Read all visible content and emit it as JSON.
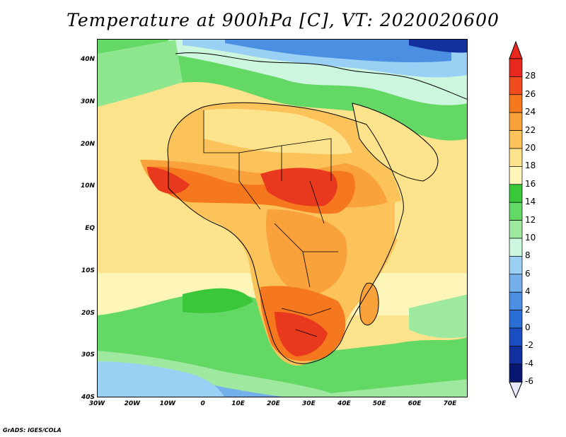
{
  "title": "Temperature at 900hPa [C], VT: 2020020600",
  "footer": "GrADS: IGES/COLA",
  "map": {
    "lat_ticks": [
      "40N",
      "30N",
      "20N",
      "10N",
      "EQ",
      "10S",
      "20S",
      "30S",
      "40S"
    ],
    "lon_ticks": [
      "30W",
      "20W",
      "10W",
      "0",
      "10E",
      "20E",
      "30E",
      "40E",
      "50E",
      "60E",
      "70E"
    ]
  },
  "colorbar": {
    "levels": [
      "28",
      "26",
      "24",
      "22",
      "20",
      "18",
      "16",
      "14",
      "12",
      "10",
      "8",
      "6",
      "4",
      "2",
      "0",
      "-2",
      "-4",
      "-6"
    ],
    "colors": [
      "#e8281e",
      "#f04a1e",
      "#f5781e",
      "#f9a23c",
      "#fbc35a",
      "#fde38c",
      "#fef5b8",
      "#3ac83a",
      "#64d864",
      "#9fe8a0",
      "#cdf6df",
      "#9bd0f5",
      "#73b0ec",
      "#4b8fe2",
      "#2a6fd4",
      "#1b4fc0",
      "#12309e",
      "#0a1770"
    ]
  },
  "field_colors": {
    "hot": "#e8381e",
    "very_warm": "#f5781e",
    "warm": "#f9a23c",
    "mild": "#fbc35a",
    "pale": "#fde38c",
    "cream": "#fef5b8",
    "green": "#3ac83a",
    "light_green": "#8ee68e",
    "mint": "#cdf6df",
    "light_blue": "#9bd0f5",
    "blue": "#4b8fe2",
    "dark_blue": "#12309e"
  }
}
